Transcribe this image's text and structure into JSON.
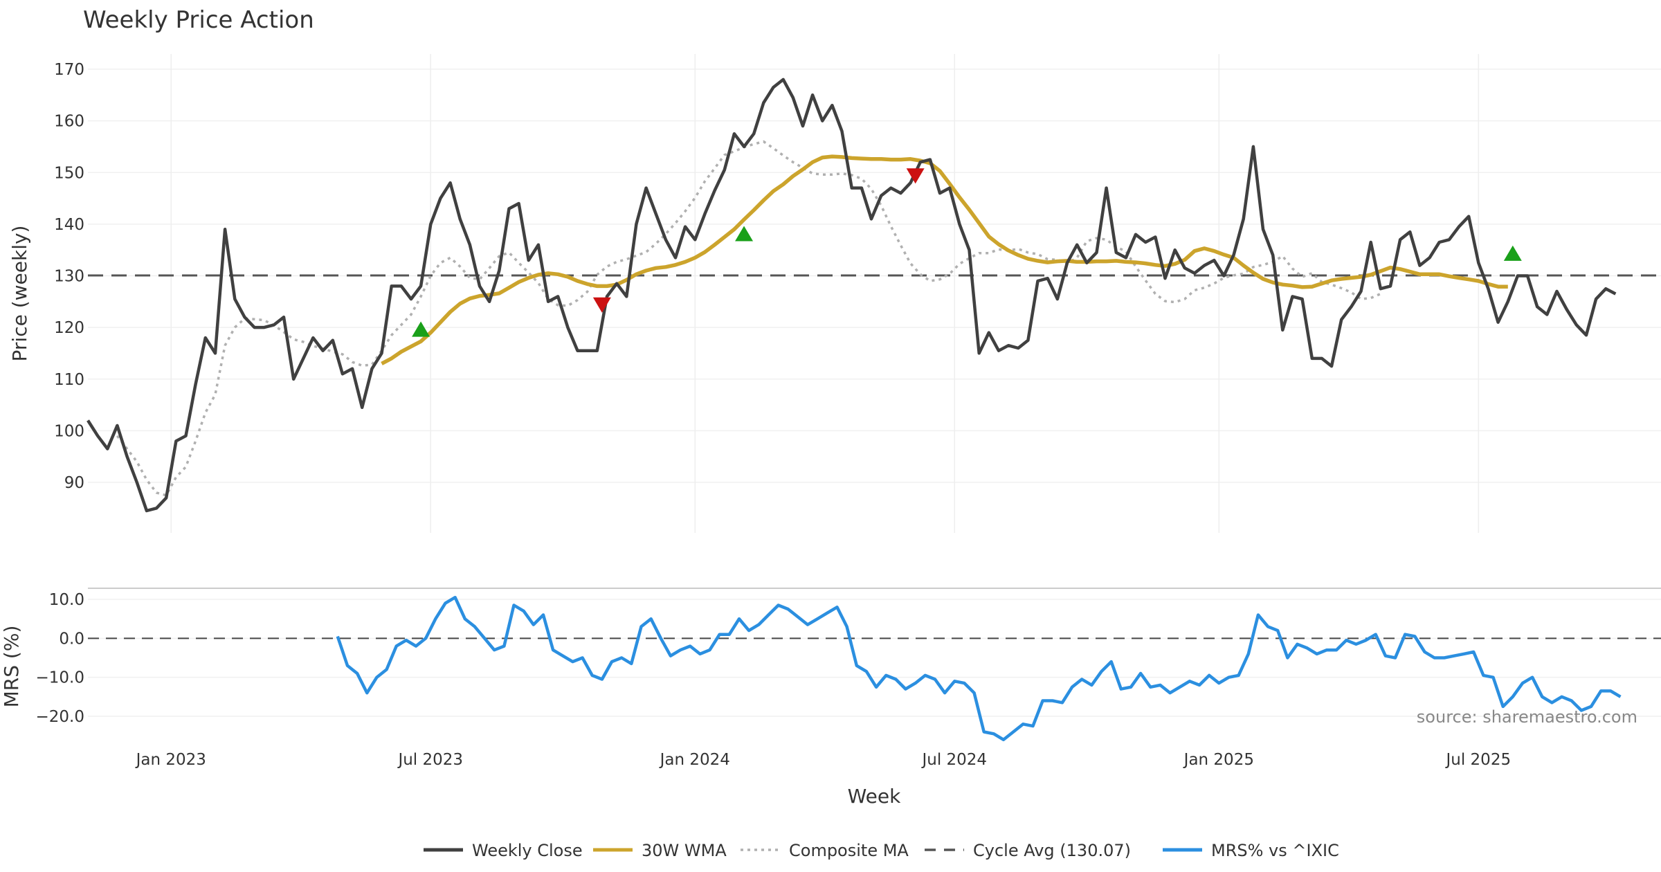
{
  "chart_data": [
    {
      "type": "line",
      "title": "Weekly Price Action",
      "ylabel": "Price (weekly)",
      "ylim": [
        80,
        172
      ],
      "yticks": [
        90,
        100,
        110,
        120,
        130,
        140,
        150,
        160,
        170
      ],
      "x_range_weeks": [
        0,
        169
      ],
      "cycle_avg": 130.07,
      "series": [
        {
          "name": "Weekly Close",
          "color": "#404040",
          "values": [
            102,
            99,
            96.5,
            101,
            95,
            90,
            84.5,
            85,
            87,
            98,
            99,
            109,
            118,
            115,
            139,
            125.5,
            122,
            120,
            120,
            120.5,
            122,
            110,
            114,
            118,
            115.5,
            117.5,
            111,
            112,
            104.5,
            112,
            115,
            128,
            128,
            125.5,
            128,
            140,
            145,
            148,
            141,
            136,
            128,
            125,
            131,
            143,
            144,
            133,
            136,
            125,
            126,
            120,
            115.5,
            115.5,
            115.5,
            126,
            128.5,
            126,
            140,
            147,
            142,
            137,
            133.5,
            139.5,
            137,
            142,
            146.5,
            150.5,
            157.5,
            155,
            157.5,
            163.5,
            166.5,
            168,
            164.5,
            159,
            165,
            160,
            163,
            158,
            147,
            147,
            141,
            145.5,
            147,
            146,
            148,
            152,
            152.5,
            146,
            147,
            140,
            135,
            115,
            119,
            115.5,
            116.5,
            116,
            117.5,
            129,
            129.5,
            125.5,
            132.5,
            136,
            132.5,
            134.5,
            147,
            134.5,
            133.5,
            138,
            136.5,
            137.5,
            129.5,
            135,
            131.5,
            130.5,
            132,
            133,
            130,
            134,
            141,
            155,
            139,
            134,
            119.5,
            126,
            125.5,
            114,
            114,
            112.5,
            121.5,
            124,
            127,
            136.5,
            127.5,
            128,
            137,
            138.5,
            132,
            133.5,
            136.5,
            137,
            139.5,
            141.5,
            132.5,
            127.5,
            121,
            125,
            130,
            130,
            124,
            122.5,
            127,
            123.5,
            120.5,
            118.5,
            125.5,
            127.5,
            126.5
          ]
        },
        {
          "name": "30W WMA",
          "color": "#cca42c",
          "start": 30,
          "values": [
            113,
            114,
            115.3,
            116.3,
            117.3,
            119,
            121,
            123,
            124.6,
            125.6,
            126.1,
            126.3,
            126.6,
            127.7,
            128.8,
            129.6,
            130.2,
            130.5,
            130.3,
            129.8,
            129,
            128.4,
            128,
            128,
            128.3,
            129.2,
            130.3,
            131,
            131.5,
            131.7,
            132.1,
            132.7,
            133.5,
            134.6,
            136,
            137.5,
            139,
            140.9,
            142.7,
            144.6,
            146.4,
            147.7,
            149.3,
            150.6,
            152,
            152.9,
            153.1,
            153,
            152.8,
            152.7,
            152.6,
            152.6,
            152.5,
            152.5,
            152.6,
            152.3,
            151.8,
            150.3,
            147.8,
            145.2,
            142.8,
            140.2,
            137.6,
            136.1,
            134.9,
            134,
            133.3,
            132.9,
            132.6,
            132.8,
            132.9,
            132.7,
            132.7,
            132.8,
            132.8,
            132.9,
            132.7,
            132.6,
            132.4,
            132.1,
            131.9,
            132.3,
            133.1,
            134.8,
            135.3,
            134.8,
            134.1,
            133.5,
            132,
            130.6,
            129.4,
            128.7,
            128.3,
            128.1,
            127.8,
            127.9,
            128.5,
            129.1,
            129.4,
            129.6,
            129.8,
            130.2,
            130.9,
            131.6,
            131.3,
            130.8,
            130.3,
            130.3,
            130.3,
            129.9,
            129.6,
            129.3,
            129,
            128.4,
            127.9,
            127.9
          ]
        },
        {
          "name": "Composite MA",
          "color": "#b0b0b0",
          "start": 3,
          "values": [
            99,
            96.5,
            94,
            90.5,
            88,
            87.5,
            91,
            93,
            98,
            103.5,
            107,
            116.5,
            120,
            121.7,
            121.6,
            121.4,
            120.4,
            119.1,
            117.7,
            117.2,
            116.4,
            115.9,
            115.3,
            114.8,
            113.3,
            112.6,
            112.8,
            115.5,
            118.5,
            120.5,
            122.5,
            126,
            130,
            132.5,
            133.5,
            131.8,
            129.6,
            129.3,
            131.5,
            133.8,
            134.5,
            132.5,
            130.6,
            128.6,
            125.5,
            124.3,
            124.2,
            125.3,
            126.9,
            130.2,
            131.8,
            132.7,
            133.2,
            133.9,
            134.6,
            136.2,
            138.1,
            140.2,
            142.5,
            145.1,
            148.3,
            150.8,
            153.4,
            154.1,
            154.9,
            155.5,
            156,
            154.7,
            153.3,
            152,
            150.9,
            149.8,
            149.6,
            149.6,
            149.8,
            149.5,
            148.8,
            146.8,
            143.6,
            139.6,
            135.9,
            132.4,
            130.3,
            129,
            129.3,
            130.4,
            132.3,
            133.4,
            134.4,
            134.4,
            135.1,
            134.9,
            135.2,
            134.5,
            134.2,
            133.2,
            133.1,
            132.4,
            133.5,
            136.7,
            137.3,
            137,
            135.6,
            134.7,
            131.8,
            129.1,
            126.5,
            125.1,
            124.9,
            125.5,
            127.2,
            127.7,
            128.5,
            129.6,
            130.1,
            130.4,
            131.7,
            132.1,
            132.7,
            133.8,
            131.4,
            129.8,
            130.5,
            128.8,
            128.3,
            127.6,
            126.8,
            125.5,
            125.7,
            126.5
          ]
        }
      ],
      "markers": [
        {
          "type": "buy",
          "x": 34,
          "y": 119.5,
          "color": "#1aa01a"
        },
        {
          "type": "sell",
          "x": 52.5,
          "y": 124.5,
          "color": "#cc1111"
        },
        {
          "type": "buy",
          "x": 67,
          "y": 138,
          "color": "#1aa01a"
        },
        {
          "type": "sell",
          "x": 84.5,
          "y": 149.5,
          "color": "#cc1111"
        },
        {
          "type": "buy",
          "x": 145.5,
          "y": 134.2,
          "color": "#1aa01a"
        }
      ]
    },
    {
      "type": "line",
      "ylabel": "MRS (%)",
      "xlabel": "Week",
      "ylim": [
        -27,
        12
      ],
      "yticks": [
        10.0,
        0.0,
        -10.0,
        -20.0
      ],
      "ytick_labels": [
        "10.0",
        "0.0",
        "−10.0",
        "−20.0"
      ],
      "xticks": [
        {
          "label": "Jan 2023",
          "x": 8.5
        },
        {
          "label": "Jul 2023",
          "x": 35
        },
        {
          "label": "Jan 2024",
          "x": 62
        },
        {
          "label": "Jul 2024",
          "x": 88.5
        },
        {
          "label": "Jan 2025",
          "x": 115.5
        },
        {
          "label": "Jul 2025",
          "x": 142
        }
      ],
      "series": [
        {
          "name": "MRS% vs ^IXIC",
          "color": "#2b8fe0",
          "start": 25.5,
          "values": [
            0.5,
            -7,
            -9,
            -14,
            -10,
            -8,
            -2,
            -0.5,
            -2,
            0,
            5,
            9,
            10.5,
            5,
            3,
            0,
            -3,
            -2,
            8.5,
            7,
            3.5,
            6,
            -3,
            -4.5,
            -6,
            -5,
            -9.5,
            -10.5,
            -6,
            -5,
            -6.5,
            3,
            5,
            0,
            -4.5,
            -3,
            -2,
            -4,
            -3,
            1,
            1,
            5,
            2,
            3.5,
            6,
            8.5,
            7.5,
            5.5,
            3.5,
            5,
            6.5,
            8,
            3,
            -7,
            -8.5,
            -12.5,
            -9.5,
            -10.5,
            -13,
            -11.5,
            -9.5,
            -10.5,
            -14,
            -11,
            -11.5,
            -14,
            -24,
            -24.5,
            -26,
            -24,
            -22,
            -22.5,
            -16,
            -16,
            -16.5,
            -12.5,
            -10.5,
            -12,
            -8.5,
            -6,
            -13,
            -12.5,
            -9,
            -12.5,
            -12,
            -14,
            -12.5,
            -11,
            -12,
            -9.5,
            -11.5,
            -10,
            -9.5,
            -4,
            6,
            3,
            2,
            -5,
            -1.5,
            -2.5,
            -4,
            -3,
            -3,
            -0.5,
            -1.5,
            -0.5,
            1,
            -4.5,
            -5,
            1,
            0.5,
            -3.5,
            -5,
            -5,
            -4.5,
            -4,
            -3.5,
            -9.5,
            -10,
            -17.5,
            -15,
            -11.5,
            -10,
            -15,
            -16.5,
            -15,
            -16,
            -18.5,
            -17.5,
            -13.5,
            -13.5,
            -15
          ]
        }
      ]
    }
  ],
  "legend": [
    {
      "label": "Weekly Close",
      "style": "solid",
      "color": "#404040"
    },
    {
      "label": "30W WMA",
      "style": "solid",
      "color": "#cca42c"
    },
    {
      "label": "Composite MA",
      "style": "dotted",
      "color": "#b0b0b0"
    },
    {
      "label": "Cycle Avg (130.07)",
      "style": "dashed",
      "color": "#555555"
    },
    {
      "label": "MRS% vs ^IXIC",
      "style": "solid",
      "color": "#2b8fe0"
    }
  ],
  "source_note": "source: sharemaestro.com"
}
